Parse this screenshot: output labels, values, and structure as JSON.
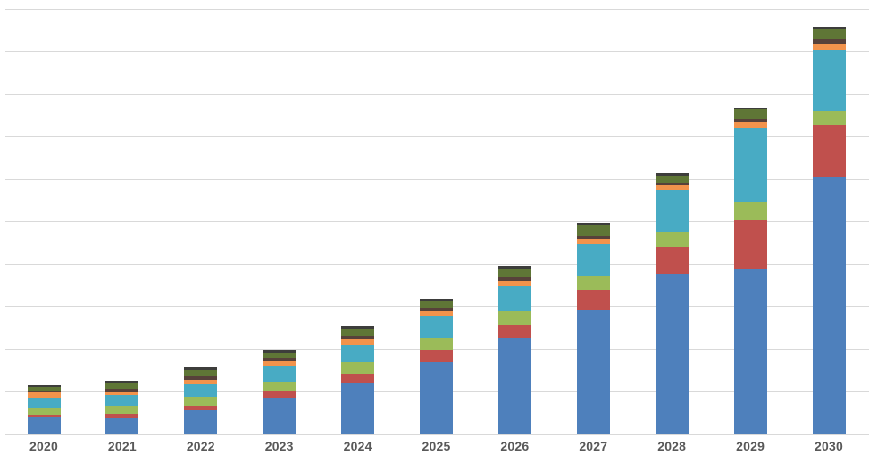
{
  "chart_data": {
    "type": "bar",
    "stacked": true,
    "title": "",
    "xlabel": "",
    "ylabel": "",
    "legend": false,
    "grid": true,
    "ylim": [
      0,
      1000
    ],
    "gridline_step": 100,
    "y_tick_labels_visible": false,
    "categories": [
      "2020",
      "2021",
      "2022",
      "2023",
      "2024",
      "2025",
      "2026",
      "2027",
      "2028",
      "2029",
      "2030"
    ],
    "series_order": "bottom-to-top",
    "series": [
      {
        "name": "series-blue",
        "color": "#4E80BC",
        "values": [
          36,
          34,
          53,
          84,
          118,
          168,
          225,
          290,
          375,
          387,
          604
        ]
      },
      {
        "name": "series-red",
        "color": "#C0504D",
        "values": [
          8,
          11,
          11,
          15,
          21,
          29,
          29,
          48,
          65,
          116,
          122
        ]
      },
      {
        "name": "series-green",
        "color": "#9BBB59",
        "values": [
          17,
          19,
          21,
          23,
          29,
          27,
          34,
          32,
          32,
          42,
          34
        ]
      },
      {
        "name": "series-teal",
        "color": "#48ABC4",
        "values": [
          23,
          25,
          29,
          36,
          40,
          50,
          59,
          76,
          101,
          173,
          143
        ]
      },
      {
        "name": "series-orange",
        "color": "#F2934C",
        "values": [
          11,
          8,
          11,
          11,
          15,
          13,
          13,
          11,
          11,
          15,
          13
        ]
      },
      {
        "name": "series-brown",
        "color": "#57413A",
        "values": [
          6,
          7,
          8,
          6,
          6,
          6,
          8,
          8,
          5,
          6,
          11
        ]
      },
      {
        "name": "series-olive",
        "color": "#5F7636",
        "values": [
          8,
          15,
          15,
          13,
          17,
          17,
          19,
          25,
          17,
          25,
          25
        ]
      },
      {
        "name": "series-darkgray",
        "color": "#3D3D3B",
        "values": [
          4,
          5,
          8,
          6,
          6,
          6,
          6,
          4,
          8,
          2,
          4
        ]
      }
    ],
    "style": {
      "gridline_color": "#D9D9D9",
      "axis_line_color": "#D9D9D9",
      "x_label_color": "#595959",
      "background_color": "#FFFFFF"
    }
  }
}
